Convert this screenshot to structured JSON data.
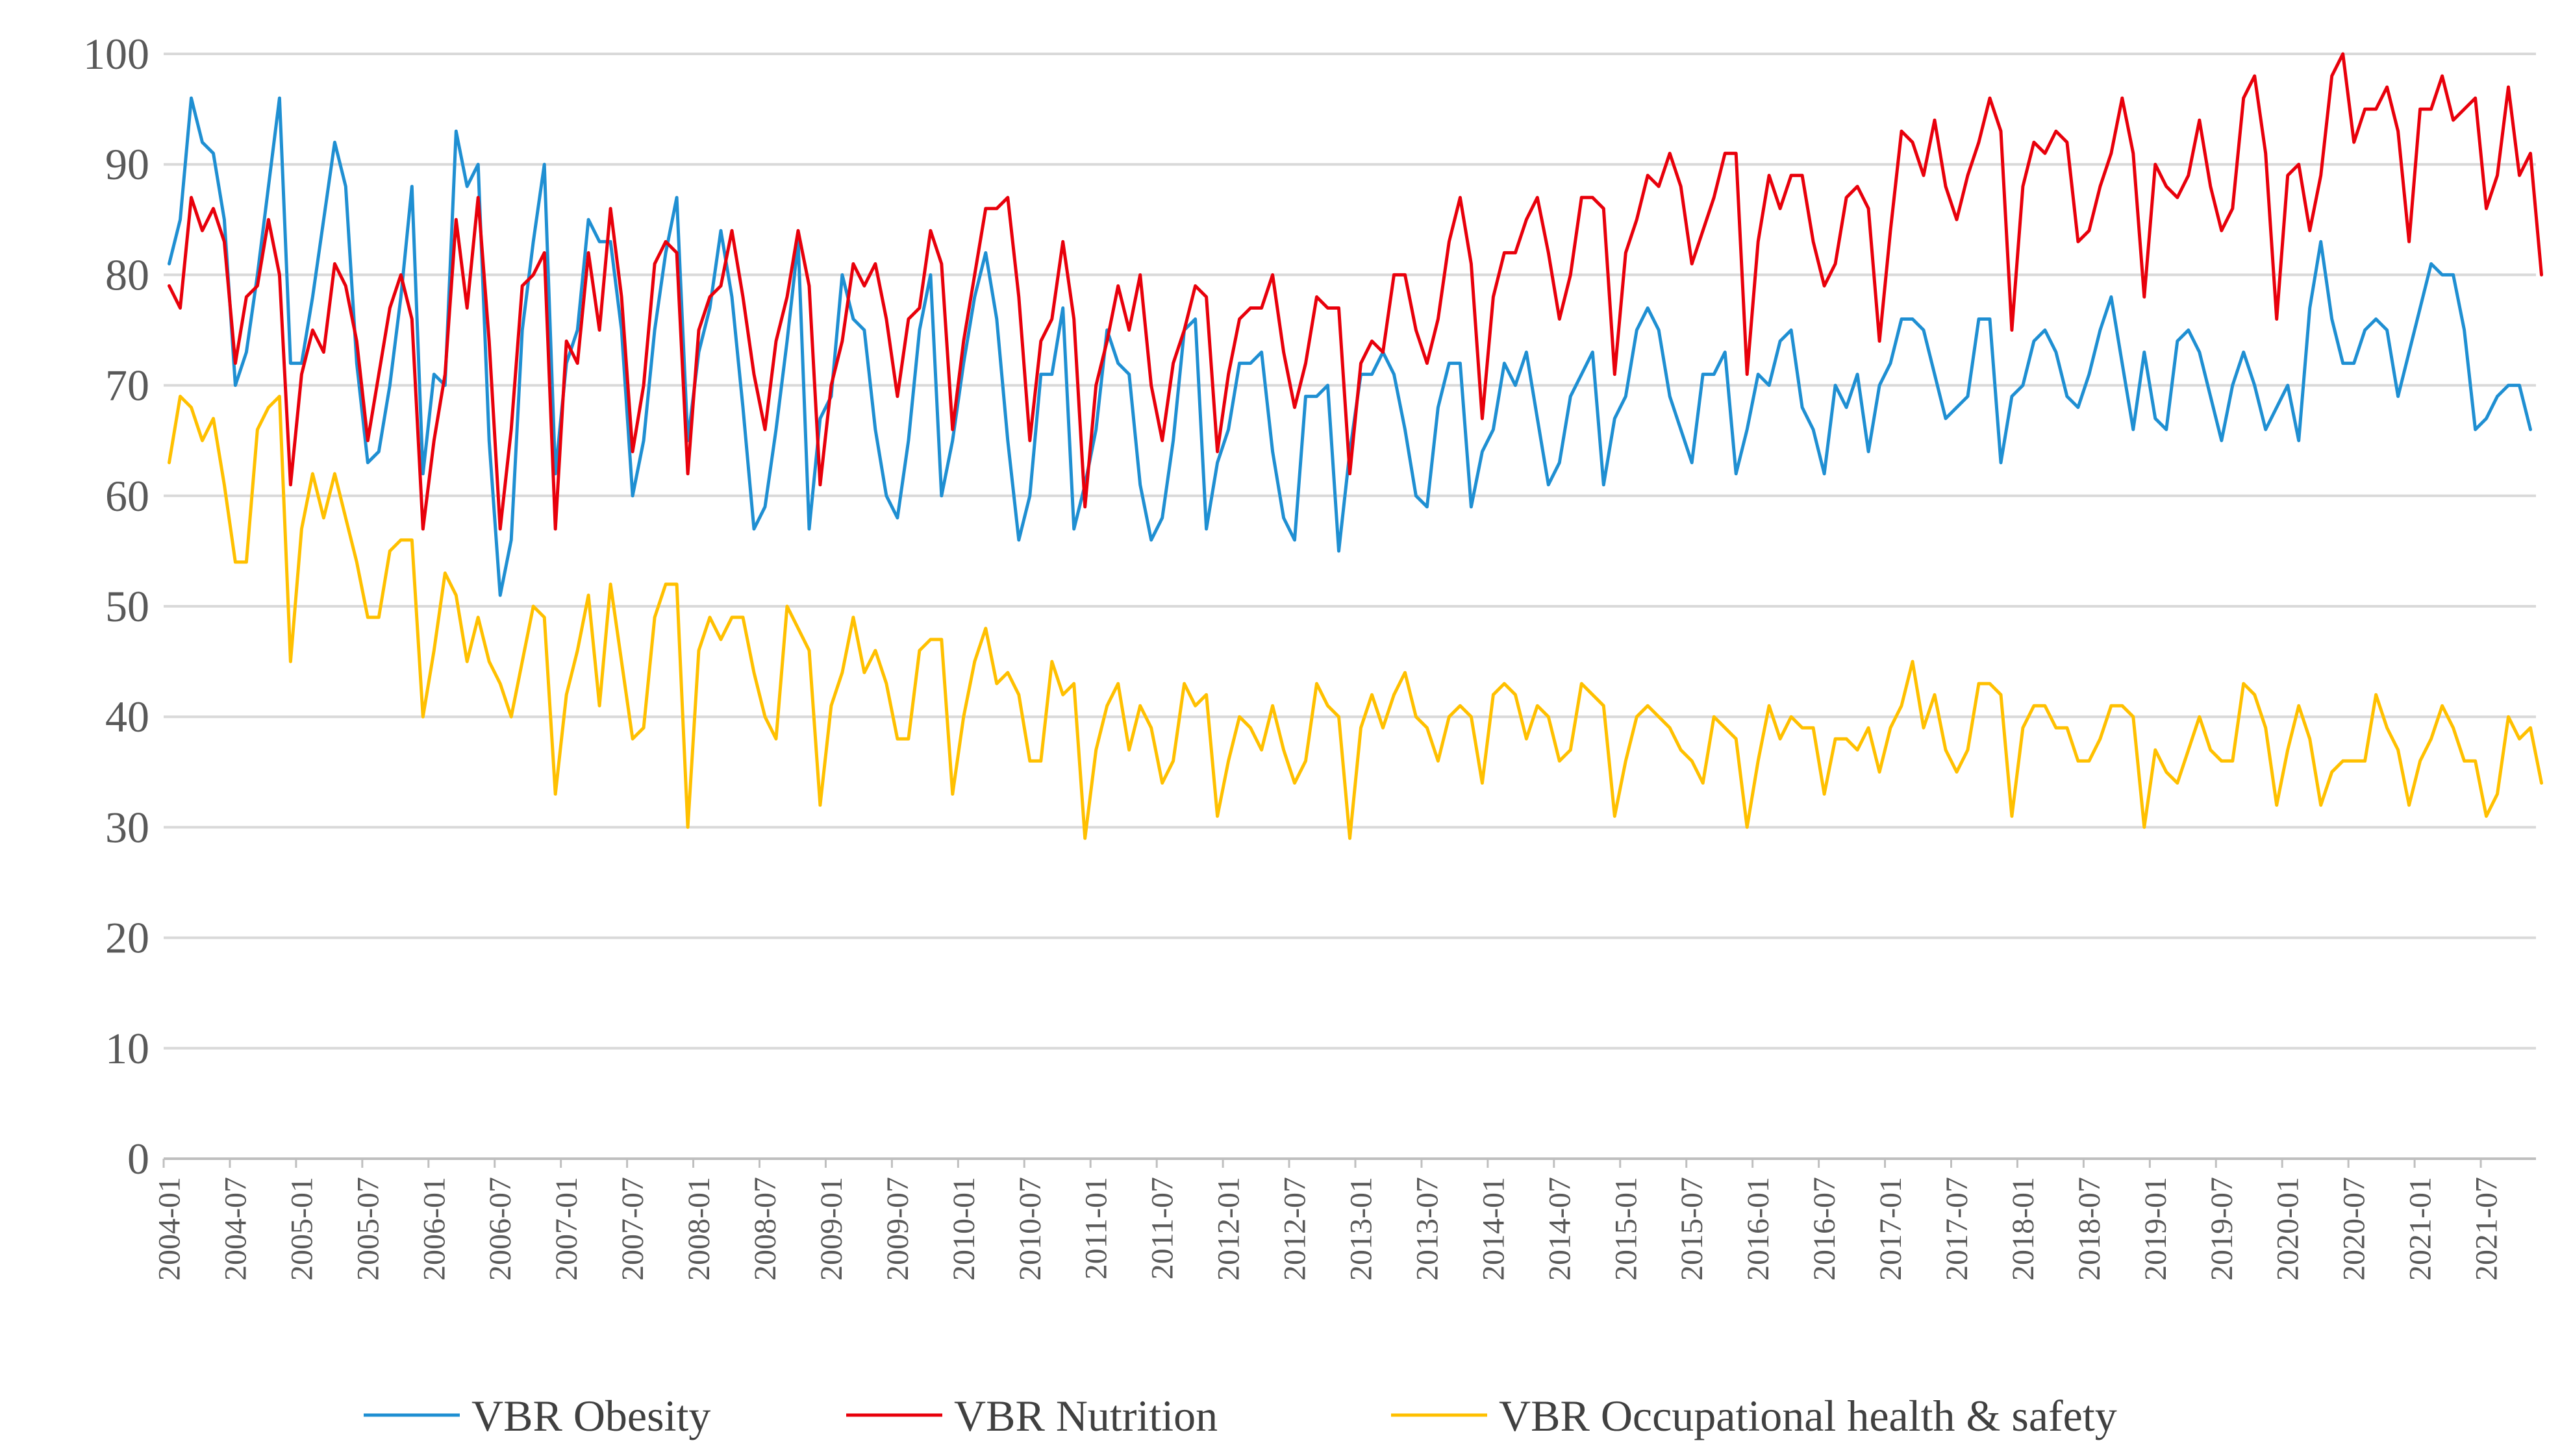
{
  "chart_data": {
    "type": "line",
    "title": "",
    "xlabel": "",
    "ylabel": "",
    "ylim": [
      0,
      100
    ],
    "yticks": [
      0,
      10,
      20,
      30,
      40,
      50,
      60,
      70,
      80,
      90,
      100
    ],
    "grid": true,
    "legend_position": "bottom",
    "x_start": "2004-01",
    "x_end": "2021-12",
    "x_tick_labels": [
      "2004-01",
      "2004-07",
      "2005-01",
      "2005-07",
      "2006-01",
      "2006-07",
      "2007-01",
      "2007-07",
      "2008-01",
      "2008-07",
      "2009-01",
      "2009-07",
      "2010-01",
      "2010-07",
      "2011-01",
      "2011-07",
      "2012-01",
      "2012-07",
      "2013-01",
      "2013-07",
      "2014-01",
      "2014-07",
      "2015-01",
      "2015-07",
      "2016-01",
      "2016-07",
      "2017-01",
      "2017-07",
      "2018-01",
      "2018-07",
      "2019-01",
      "2019-07",
      "2020-01",
      "2020-07",
      "2021-01",
      "2021-07"
    ],
    "series": [
      {
        "name": "VBR Obesity",
        "color": "#1f8fd2",
        "values": [
          81,
          85,
          96,
          92,
          91,
          85,
          70,
          73,
          80,
          88,
          96,
          72,
          72,
          78,
          85,
          92,
          88,
          72,
          63,
          64,
          70,
          78,
          88,
          62,
          71,
          70,
          93,
          88,
          90,
          65,
          51,
          56,
          75,
          83,
          90,
          62,
          72,
          75,
          85,
          83,
          83,
          75,
          60,
          65,
          75,
          82,
          87,
          65,
          73,
          77,
          84,
          78,
          68,
          57,
          59,
          66,
          74,
          83,
          57,
          67,
          69,
          80,
          76,
          75,
          66,
          60,
          58,
          65,
          75,
          80,
          60,
          65,
          72,
          78,
          82,
          76,
          65,
          56,
          60,
          71,
          71,
          77,
          57,
          61,
          66,
          75,
          72,
          71,
          61,
          56,
          58,
          65,
          75,
          76,
          57,
          63,
          66,
          72,
          72,
          73,
          64,
          58,
          56,
          69,
          69,
          70,
          55,
          64,
          71,
          71,
          73,
          71,
          66,
          60,
          59,
          68,
          72,
          72,
          59,
          64,
          66,
          72,
          70,
          73,
          67,
          61,
          63,
          69,
          71,
          73,
          61,
          67,
          69,
          75,
          77,
          75,
          69,
          66,
          63,
          71,
          71,
          73,
          62,
          66,
          71,
          70,
          74,
          75,
          68,
          66,
          62,
          70,
          68,
          71,
          64,
          70,
          72,
          76,
          76,
          75,
          71,
          67,
          68,
          69,
          76,
          76,
          63,
          69,
          70,
          74,
          75,
          73,
          69,
          68,
          71,
          75,
          78,
          72,
          66,
          73,
          67,
          66,
          74,
          75,
          73,
          69,
          65,
          70,
          73,
          70,
          66,
          68,
          70,
          65,
          77,
          83,
          76,
          72,
          72,
          75,
          76,
          75,
          69,
          73,
          77,
          81,
          80,
          80,
          75,
          66,
          67,
          69,
          70,
          70,
          66
        ]
      },
      {
        "name": "VBR Nutrition",
        "color": "#e8000b",
        "values": [
          79,
          77,
          87,
          84,
          86,
          83,
          72,
          78,
          79,
          85,
          80,
          61,
          71,
          75,
          73,
          81,
          79,
          74,
          65,
          71,
          77,
          80,
          76,
          57,
          65,
          71,
          85,
          77,
          87,
          74,
          57,
          66,
          79,
          80,
          82,
          57,
          74,
          72,
          82,
          75,
          86,
          78,
          64,
          70,
          81,
          83,
          82,
          62,
          75,
          78,
          79,
          84,
          78,
          71,
          66,
          74,
          78,
          84,
          79,
          61,
          70,
          74,
          81,
          79,
          81,
          76,
          69,
          76,
          77,
          84,
          81,
          66,
          74,
          80,
          86,
          86,
          87,
          78,
          65,
          74,
          76,
          83,
          76,
          59,
          70,
          74,
          79,
          75,
          80,
          70,
          65,
          72,
          75,
          79,
          78,
          64,
          71,
          76,
          77,
          77,
          80,
          73,
          68,
          72,
          78,
          77,
          77,
          62,
          72,
          74,
          73,
          80,
          80,
          75,
          72,
          76,
          83,
          87,
          81,
          67,
          78,
          82,
          82,
          85,
          87,
          82,
          76,
          80,
          87,
          87,
          86,
          71,
          82,
          85,
          89,
          88,
          91,
          88,
          81,
          84,
          87,
          91,
          91,
          71,
          83,
          89,
          86,
          89,
          89,
          83,
          79,
          81,
          87,
          88,
          86,
          74,
          84,
          93,
          92,
          89,
          94,
          88,
          85,
          89,
          92,
          96,
          93,
          75,
          88,
          92,
          91,
          93,
          92,
          83,
          84,
          88,
          91,
          96,
          91,
          78,
          90,
          88,
          87,
          89,
          94,
          88,
          84,
          86,
          96,
          98,
          91,
          76,
          89,
          90,
          84,
          89,
          98,
          100,
          92,
          95,
          95,
          97,
          93,
          83,
          95,
          95,
          98,
          94,
          95,
          96,
          86,
          89,
          97,
          89,
          91,
          80
        ]
      },
      {
        "name": "VBR Occupational health & safety",
        "color": "#ffc000",
        "values": [
          63,
          69,
          68,
          65,
          67,
          61,
          54,
          54,
          66,
          68,
          69,
          45,
          57,
          62,
          58,
          62,
          58,
          54,
          49,
          49,
          55,
          56,
          56,
          40,
          46,
          53,
          51,
          45,
          49,
          45,
          43,
          40,
          45,
          50,
          49,
          33,
          42,
          46,
          51,
          41,
          52,
          45,
          38,
          39,
          49,
          52,
          52,
          30,
          46,
          49,
          47,
          49,
          49,
          44,
          40,
          38,
          50,
          48,
          46,
          32,
          41,
          44,
          49,
          44,
          46,
          43,
          38,
          38,
          46,
          47,
          47,
          33,
          40,
          45,
          48,
          43,
          44,
          42,
          36,
          36,
          45,
          42,
          43,
          29,
          37,
          41,
          43,
          37,
          41,
          39,
          34,
          36,
          43,
          41,
          42,
          31,
          36,
          40,
          39,
          37,
          41,
          37,
          34,
          36,
          43,
          41,
          40,
          29,
          39,
          42,
          39,
          42,
          44,
          40,
          39,
          36,
          40,
          41,
          40,
          34,
          42,
          43,
          42,
          38,
          41,
          40,
          36,
          37,
          43,
          42,
          41,
          31,
          36,
          40,
          41,
          40,
          39,
          37,
          36,
          34,
          40,
          39,
          38,
          30,
          36,
          41,
          38,
          40,
          39,
          39,
          33,
          38,
          38,
          37,
          39,
          35,
          39,
          41,
          45,
          39,
          42,
          37,
          35,
          37,
          43,
          43,
          42,
          31,
          39,
          41,
          41,
          39,
          39,
          36,
          36,
          38,
          41,
          41,
          40,
          30,
          37,
          35,
          34,
          37,
          40,
          37,
          36,
          36,
          43,
          42,
          39,
          32,
          37,
          41,
          38,
          32,
          35,
          36,
          36,
          36,
          42,
          39,
          37,
          32,
          36,
          38,
          41,
          39,
          36,
          36,
          31,
          33,
          40,
          38,
          39,
          34
        ]
      }
    ]
  }
}
